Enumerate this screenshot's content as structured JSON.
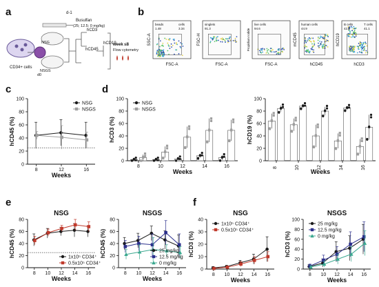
{
  "panels": {
    "a": "a",
    "b": "b",
    "c": "c",
    "d": "d",
    "e": "e",
    "f": "f"
  },
  "schematic": {
    "day_start": "d-1",
    "busulfan": "Busulfan",
    "busulfan_doses": "(25; 12.5; 0 mg/kg)",
    "cells": "CD34+ cells",
    "d0": "d0",
    "nsg": "NSG",
    "nsgs": "NSGS",
    "hcd3": "hCD3",
    "hcd45": "hCD45",
    "hcd19": "hCD19",
    "week_line1": "week ≤8",
    "week_line2": "Flow cytometry"
  },
  "flow_panels": [
    {
      "xlabel": "FSC-A",
      "ylabel": "SSC-A",
      "gate1": "beads",
      "gate1_val": "1.48",
      "gate2": "cells",
      "gate2_val": "3.34"
    },
    {
      "xlabel": "FSC-A",
      "ylabel": "FSC-H",
      "gate1": "singlets",
      "gate1_val": "91.3"
    },
    {
      "xlabel": "FSC-A",
      "ylabel": "Propidium Iodide",
      "gate1": "live cells",
      "gate1_val": "94.6"
    },
    {
      "xlabel": "hCD45",
      "ylabel": "mCD45",
      "gate1": "human cells",
      "gate1_val": "44.9"
    },
    {
      "xlabel": "hCD3",
      "ylabel": "hCD19",
      "gate1": "B cells",
      "gate1_val": "42.5",
      "gate2": "T cells",
      "gate2_val": "41.1"
    }
  ],
  "colors": {
    "nsg": "#1a1a1a",
    "nsgs": "#9e9e9e",
    "red": "#c0392b",
    "navy": "#2b2f8c",
    "teal": "#3aa88f",
    "dotted": "#444444"
  },
  "chart_data": [
    {
      "id": "c",
      "type": "line",
      "xlabel": "Weeks",
      "ylabel": "hCD45 (%)",
      "x": [
        8,
        12,
        16
      ],
      "ylim": [
        0,
        100
      ],
      "yticks": [
        0,
        20,
        40,
        60,
        80,
        100
      ],
      "threshold": 25,
      "series": [
        {
          "name": "NSG",
          "values": [
            44,
            48,
            44
          ],
          "err": [
            20,
            20,
            20
          ],
          "color": "#1a1a1a",
          "marker": "circle"
        },
        {
          "name": "NSGS",
          "values": [
            44,
            41,
            37
          ],
          "err": [
            6,
            18,
            12
          ],
          "color": "#9e9e9e",
          "marker": "square"
        }
      ],
      "legend": "top-right"
    },
    {
      "id": "d-left",
      "type": "bar",
      "xlabel": "Weeks",
      "ylabel": "hCD3 (%)",
      "categories": [
        "8",
        "10",
        "12",
        "14",
        "16"
      ],
      "ylim": [
        0,
        100
      ],
      "yticks": [
        0,
        20,
        40,
        60,
        80,
        100
      ],
      "series": [
        {
          "name": "NSG",
          "values": [
            2,
            2,
            3,
            8,
            5
          ],
          "err": [
            1,
            1,
            2,
            3,
            4
          ],
          "color": "#1a1a1a",
          "marker": "circle"
        },
        {
          "name": "NSGS",
          "values": [
            5,
            14,
            38,
            49,
            49
          ],
          "err": [
            5,
            9,
            17,
            19,
            17
          ],
          "color": "#9e9e9e",
          "marker": "square"
        }
      ],
      "legend": "top-left"
    },
    {
      "id": "d-right",
      "type": "bar",
      "xlabel": "Weeks",
      "ylabel": "hCD19 (%)",
      "categories": [
        "8",
        "10",
        "12",
        "14",
        "16"
      ],
      "ylim": [
        0,
        100
      ],
      "yticks": [
        0,
        20,
        40,
        60,
        80,
        100
      ],
      "series": [
        {
          "name": "NSGS",
          "values": [
            64,
            58,
            40,
            32,
            23
          ],
          "err": [
            12,
            10,
            18,
            12,
            12
          ],
          "color": "#9e9e9e",
          "marker": "square"
        },
        {
          "name": "NSG",
          "values": [
            84,
            88,
            80,
            85,
            54
          ],
          "err": [
            5,
            3,
            7,
            3,
            20
          ],
          "color": "#1a1a1a",
          "marker": "circle"
        }
      ]
    },
    {
      "id": "e-left",
      "type": "line",
      "title": "NSG",
      "xlabel": "Weeks",
      "ylabel": "hCD45 (%)",
      "x": [
        8,
        10,
        12,
        14,
        16
      ],
      "ylim": [
        0,
        80
      ],
      "yticks": [
        0,
        20,
        40,
        60,
        80
      ],
      "threshold": 25,
      "series": [
        {
          "name": "1x10⁵ CD34⁺",
          "values": [
            46,
            57,
            60,
            62,
            60
          ],
          "err": [
            10,
            8,
            7,
            11,
            9
          ],
          "color": "#1a1a1a",
          "marker": "circle"
        },
        {
          "name": "0.5x10⁵ CD34⁺",
          "values": [
            45,
            58,
            65,
            71,
            68
          ],
          "err": [
            7,
            6,
            5,
            9,
            8
          ],
          "color": "#c0392b",
          "marker": "square"
        }
      ],
      "legend": "bottom-right"
    },
    {
      "id": "e-right",
      "type": "line",
      "title": "NSGS",
      "xlabel": "Weeks",
      "ylabel": "hCD45 (%)",
      "x": [
        8,
        10,
        12,
        14,
        16
      ],
      "ylim": [
        0,
        80
      ],
      "yticks": [
        0,
        20,
        40,
        60,
        80
      ],
      "series": [
        {
          "name": "25 mg/kg",
          "values": [
            40,
            45,
            57,
            46,
            36
          ],
          "err": [
            10,
            12,
            12,
            15,
            18
          ],
          "color": "#1a1a1a",
          "marker": "circle"
        },
        {
          "name": "12.5 mg/kg",
          "values": [
            35,
            40,
            38,
            58,
            38
          ],
          "err": [
            10,
            12,
            18,
            20,
            18
          ],
          "color": "#2b2f8c",
          "marker": "square"
        },
        {
          "name": "0 mg/kg",
          "values": [
            22,
            26,
            30,
            28,
            25
          ],
          "err": [
            8,
            12,
            20,
            10,
            10
          ],
          "color": "#3aa88f",
          "marker": "triangle"
        }
      ],
      "legend": "bottom-right"
    },
    {
      "id": "f-left",
      "type": "line",
      "title": "NSG",
      "xlabel": "Weeks",
      "ylabel": "hCD3 (%)",
      "x": [
        8,
        10,
        12,
        14,
        16
      ],
      "ylim": [
        0,
        40
      ],
      "yticks": [
        0,
        10,
        20,
        30,
        40
      ],
      "series": [
        {
          "name": "1x10⁵ CD34⁺",
          "values": [
            1,
            2,
            5,
            8,
            16
          ],
          "err": [
            1,
            1,
            2,
            4,
            10
          ],
          "color": "#1a1a1a",
          "marker": "circle"
        },
        {
          "name": "0.5x10⁵ CD34⁺",
          "values": [
            0.5,
            1.5,
            4,
            7,
            10
          ],
          "err": [
            0.5,
            1,
            2,
            3,
            4
          ],
          "color": "#c0392b",
          "marker": "square"
        }
      ],
      "legend": "top-left"
    },
    {
      "id": "f-right",
      "type": "line",
      "title": "NSGS",
      "xlabel": "Weeks",
      "ylabel": "hCD3 (%)",
      "x": [
        8,
        10,
        12,
        14,
        16
      ],
      "ylim": [
        0,
        100
      ],
      "yticks": [
        0,
        20,
        40,
        60,
        80,
        100
      ],
      "series": [
        {
          "name": "25 mg/kg",
          "values": [
            5,
            12,
            35,
            42,
            60
          ],
          "err": [
            4,
            8,
            20,
            25,
            30
          ],
          "color": "#1a1a1a",
          "marker": "circle"
        },
        {
          "name": "12.5 mg/kg",
          "values": [
            6,
            18,
            30,
            50,
            65
          ],
          "err": [
            4,
            10,
            15,
            25,
            30
          ],
          "color": "#2b2f8c",
          "marker": "square"
        },
        {
          "name": "0 mg/kg",
          "values": [
            4,
            10,
            20,
            30,
            52
          ],
          "err": [
            3,
            6,
            10,
            15,
            25
          ],
          "color": "#3aa88f",
          "marker": "triangle"
        }
      ],
      "legend": "top-left"
    }
  ]
}
